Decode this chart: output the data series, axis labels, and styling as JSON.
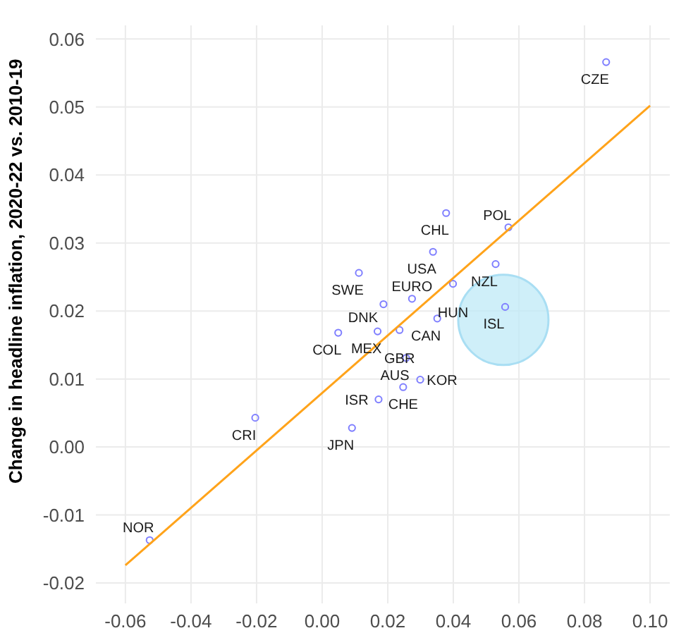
{
  "chart_data": {
    "type": "scatter",
    "ylabel": "Change in headline inflation, 2020-22 vs. 2010-19",
    "xlim": [
      -0.069,
      0.106
    ],
    "xticks": [
      {
        "value": -0.06,
        "label": "-0.06"
      },
      {
        "value": -0.04,
        "label": "-0.04"
      },
      {
        "value": -0.02,
        "label": "-0.02"
      },
      {
        "value": 0,
        "label": "0.00"
      },
      {
        "value": 0.02,
        "label": "0.02"
      },
      {
        "value": 0.04,
        "label": "0.04"
      },
      {
        "value": 0.06,
        "label": "0.06"
      },
      {
        "value": 0.08,
        "label": "0.08"
      },
      {
        "value": 0.1,
        "label": "0.10"
      }
    ],
    "ylim": [
      -0.023,
      0.062
    ],
    "yticks": [
      {
        "value": -0.02,
        "label": "-0.02"
      },
      {
        "value": -0.01,
        "label": "-0.01"
      },
      {
        "value": 0,
        "label": "0.00"
      },
      {
        "value": 0.01,
        "label": "0.01"
      },
      {
        "value": 0.02,
        "label": "0.02"
      },
      {
        "value": 0.03,
        "label": "0.03"
      },
      {
        "value": 0.04,
        "label": "0.04"
      },
      {
        "value": 0.05,
        "label": "0.05"
      },
      {
        "value": 0.06,
        "label": "0.06"
      }
    ],
    "grid": true,
    "marker": "circle",
    "legend": false,
    "series": [
      {
        "type": "scatter",
        "color": "#7f7fff",
        "x": [
          0.0866,
          -0.0526,
          0.0112,
          0.0049,
          -0.0204,
          0.0091,
          0.0378,
          0.0568,
          0.0338,
          0.0529,
          0.0399,
          0.0274,
          0.0187,
          0.0558,
          0.0351,
          0.0236,
          0.0169,
          0.0256,
          0.0299,
          0.0247,
          0.0172
        ],
        "values": [
          0.0566,
          -0.0137,
          0.0256,
          0.0168,
          0.0043,
          0.0028,
          0.0344,
          0.0323,
          0.0287,
          0.0269,
          0.024,
          0.0218,
          0.021,
          0.0206,
          0.0189,
          0.0172,
          0.017,
          0.0131,
          0.0099,
          0.0088,
          0.007
        ]
      },
      {
        "type": "line",
        "marker": "none",
        "color": "#ffa31a",
        "x": [
          -0.06,
          0.1
        ],
        "values": [
          -0.0174,
          0.0502
        ]
      }
    ],
    "annotations": [
      {
        "text": "CZE",
        "x": 0.0866,
        "y": 0.0566
      },
      {
        "text": "NOR",
        "x": -0.0526,
        "y": -0.0137
      },
      {
        "text": "SWE",
        "x": 0.0112,
        "y": 0.0256
      },
      {
        "text": "COL",
        "x": 0.0049,
        "y": 0.0168
      },
      {
        "text": "CRI",
        "x": -0.0204,
        "y": 0.0043
      },
      {
        "text": "JPN",
        "x": 0.0091,
        "y": 0.0028
      },
      {
        "text": "CHL",
        "x": 0.0378,
        "y": 0.0344
      },
      {
        "text": "POL",
        "x": 0.0568,
        "y": 0.0323
      },
      {
        "text": "USA",
        "x": 0.0338,
        "y": 0.0287
      },
      {
        "text": "NZL",
        "x": 0.0529,
        "y": 0.0269
      },
      {
        "text": "HUN",
        "x": 0.0399,
        "y": 0.024
      },
      {
        "text": "EURO",
        "x": 0.0274,
        "y": 0.0218
      },
      {
        "text": "DNK",
        "x": 0.0187,
        "y": 0.021
      },
      {
        "text": "ISL",
        "x": 0.0558,
        "y": 0.0206
      },
      {
        "text": "CAN",
        "x": 0.0351,
        "y": 0.0189
      },
      {
        "text": "GBR",
        "x": 0.0236,
        "y": 0.0172
      },
      {
        "text": "MEX",
        "x": 0.0169,
        "y": 0.017
      },
      {
        "text": "AUS",
        "x": 0.0256,
        "y": 0.0131
      },
      {
        "text": "KOR",
        "x": 0.0299,
        "y": 0.0099
      },
      {
        "text": "CHE",
        "x": 0.0247,
        "y": 0.0088
      },
      {
        "text": "ISR",
        "x": 0.0172,
        "y": 0.007
      }
    ]
  }
}
